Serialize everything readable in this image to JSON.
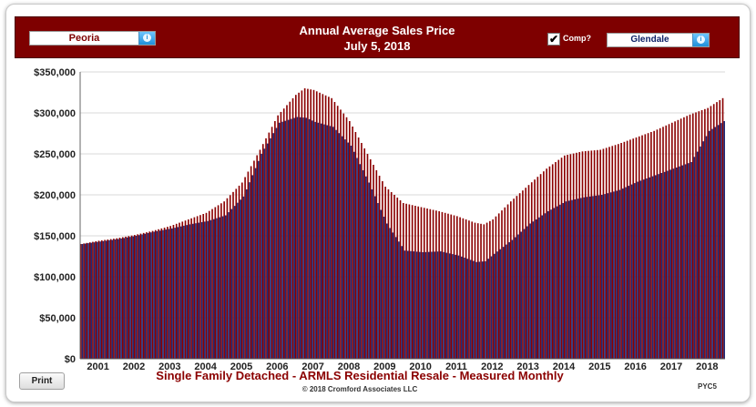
{
  "header": {
    "title": "Annual Average Sales Price",
    "date": "July 5, 2018",
    "left_select": "Peoria",
    "right_select": "Glendale",
    "comp_label": "Comp?",
    "comp_checked": true
  },
  "footer": {
    "print_label": "Print",
    "subtitle": "Single Family Detached - ARMLS Residential Resale - Measured Monthly",
    "copyright": "© 2018 Cromford Associates LLC",
    "code": "PYC5"
  },
  "colors": {
    "header_bg": "#7e0000",
    "series_peoria": "#8b0000",
    "series_glendale": "#1f2a78",
    "grid": "#d8d8d8"
  },
  "chart_data": {
    "type": "bar",
    "ylim": [
      0,
      350000
    ],
    "y_ticks": [
      "$0",
      "$50,000",
      "$100,000",
      "$150,000",
      "$200,000",
      "$250,000",
      "$300,000",
      "$350,000"
    ],
    "x_ticks": [
      "2001",
      "2002",
      "2003",
      "2004",
      "2005",
      "2006",
      "2007",
      "2008",
      "2009",
      "2010",
      "2011",
      "2012",
      "2013",
      "2014",
      "2015",
      "2016",
      "2017",
      "2018"
    ],
    "x_start": "2000-07",
    "x_end": "2018-06",
    "grid": true,
    "series": [
      {
        "name": "Peoria",
        "x": [
          "2000-07",
          "2001-01",
          "2001-07",
          "2002-01",
          "2002-07",
          "2003-01",
          "2003-07",
          "2004-01",
          "2004-07",
          "2005-01",
          "2005-07",
          "2006-01",
          "2006-07",
          "2006-10",
          "2007-01",
          "2007-07",
          "2008-01",
          "2008-07",
          "2009-01",
          "2009-07",
          "2010-01",
          "2010-07",
          "2011-01",
          "2011-07",
          "2011-10",
          "2012-01",
          "2012-07",
          "2013-01",
          "2013-07",
          "2014-01",
          "2014-07",
          "2015-01",
          "2015-07",
          "2016-01",
          "2016-07",
          "2017-01",
          "2017-07",
          "2018-01",
          "2018-06"
        ],
        "values": [
          140000,
          144000,
          147000,
          151000,
          156000,
          162000,
          170000,
          178000,
          192000,
          215000,
          255000,
          297000,
          322000,
          330000,
          328000,
          318000,
          290000,
          250000,
          210000,
          190000,
          185000,
          180000,
          174000,
          166000,
          164000,
          170000,
          192000,
          212000,
          232000,
          248000,
          253000,
          255000,
          262000,
          270000,
          278000,
          288000,
          298000,
          306000,
          318000
        ]
      },
      {
        "name": "Glendale",
        "x": [
          "2000-07",
          "2001-01",
          "2001-07",
          "2002-01",
          "2002-07",
          "2003-01",
          "2003-07",
          "2004-01",
          "2004-07",
          "2005-01",
          "2005-07",
          "2006-01",
          "2006-07",
          "2006-10",
          "2007-01",
          "2007-07",
          "2008-01",
          "2008-07",
          "2009-01",
          "2009-07",
          "2010-01",
          "2010-07",
          "2011-01",
          "2011-07",
          "2011-10",
          "2012-01",
          "2012-07",
          "2013-01",
          "2013-07",
          "2014-01",
          "2014-07",
          "2015-01",
          "2015-07",
          "2016-01",
          "2016-07",
          "2017-01",
          "2017-07",
          "2018-01",
          "2018-06"
        ],
        "values": [
          140000,
          143000,
          146000,
          150000,
          155000,
          159000,
          164000,
          168000,
          175000,
          198000,
          250000,
          288000,
          295000,
          294000,
          289000,
          283000,
          260000,
          215000,
          165000,
          132000,
          130000,
          131000,
          126000,
          118000,
          119000,
          128000,
          145000,
          165000,
          180000,
          192000,
          197000,
          200000,
          206000,
          216000,
          224000,
          232000,
          240000,
          278000,
          290000
        ]
      }
    ]
  }
}
